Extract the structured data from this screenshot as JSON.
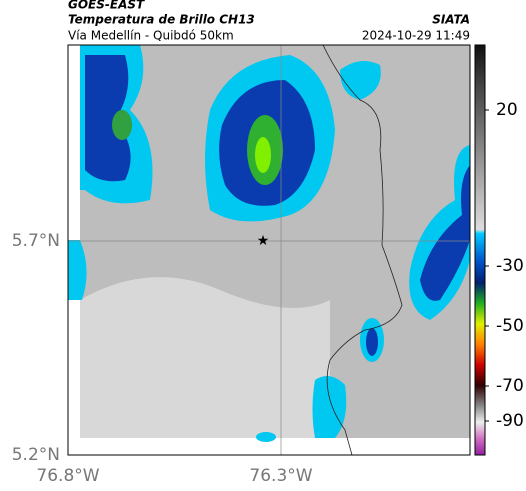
{
  "header": {
    "source": "GOES-EAST",
    "title": "Temperatura de Brillo CH13",
    "org": "SIATA",
    "subtitle": "Vía Medellín - Quibdó 50km",
    "datetime": "2024-10-29 11:49"
  },
  "axes": {
    "y_labels": [
      "5.7°N",
      "5.2°N"
    ],
    "x_labels": [
      "76.8°W",
      "76.3°W"
    ]
  },
  "colorbar": {
    "labels": [
      "20",
      "-30",
      "-50",
      "-70",
      "-90"
    ]
  }
}
